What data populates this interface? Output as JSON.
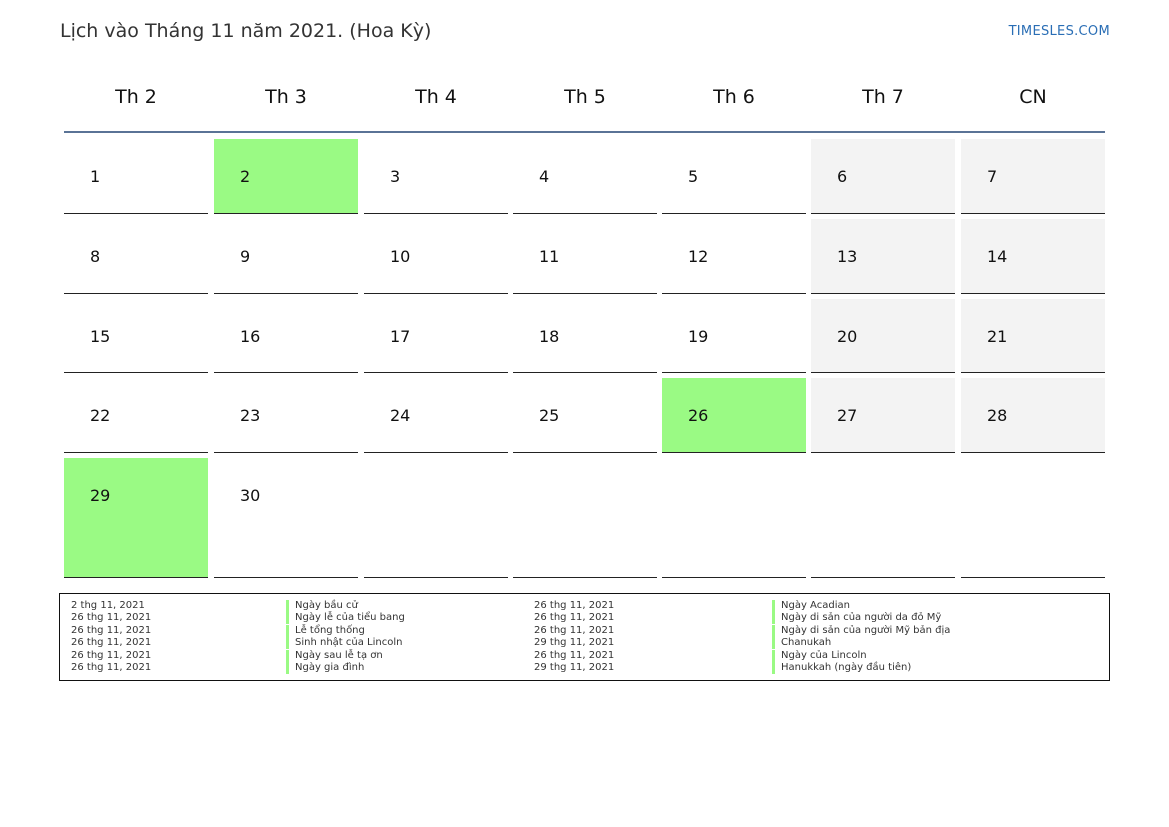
{
  "header": {
    "title": "Lịch vào Tháng 11 năm 2021. (Hoa Kỳ)",
    "brand": "TIMESLES.COM"
  },
  "colors": {
    "holiday": "#9afa84",
    "weekend": "#f3f3f3",
    "header_line": "#5a7396",
    "brand": "#2a6eb5"
  },
  "calendar": {
    "weekdays": [
      "Th 2",
      "Th 3",
      "Th 4",
      "Th 5",
      "Th 6",
      "Th 7",
      "CN"
    ],
    "weeks": [
      [
        {
          "day": "1"
        },
        {
          "day": "2",
          "holiday": true
        },
        {
          "day": "3"
        },
        {
          "day": "4"
        },
        {
          "day": "5"
        },
        {
          "day": "6",
          "weekend": true
        },
        {
          "day": "7",
          "weekend": true
        }
      ],
      [
        {
          "day": "8"
        },
        {
          "day": "9"
        },
        {
          "day": "10"
        },
        {
          "day": "11"
        },
        {
          "day": "12"
        },
        {
          "day": "13",
          "weekend": true
        },
        {
          "day": "14",
          "weekend": true
        }
      ],
      [
        {
          "day": "15"
        },
        {
          "day": "16"
        },
        {
          "day": "17"
        },
        {
          "day": "18"
        },
        {
          "day": "19"
        },
        {
          "day": "20",
          "weekend": true
        },
        {
          "day": "21",
          "weekend": true
        }
      ],
      [
        {
          "day": "22"
        },
        {
          "day": "23"
        },
        {
          "day": "24"
        },
        {
          "day": "25"
        },
        {
          "day": "26",
          "holiday": true
        },
        {
          "day": "27",
          "weekend": true
        },
        {
          "day": "28",
          "weekend": true
        }
      ],
      [
        {
          "day": "29",
          "holiday": true
        },
        {
          "day": "30"
        },
        {
          "day": ""
        },
        {
          "day": ""
        },
        {
          "day": ""
        },
        {
          "day": ""
        },
        {
          "day": ""
        }
      ]
    ]
  },
  "legend": {
    "left": [
      {
        "date": "2 thg 11, 2021",
        "name": "Ngày bầu cử"
      },
      {
        "date": "26 thg 11, 2021",
        "name": "Ngày lễ của tiểu bang"
      },
      {
        "date": "26 thg 11, 2021",
        "name": "Lễ tổng thống"
      },
      {
        "date": "26 thg 11, 2021",
        "name": "Sinh nhật của Lincoln"
      },
      {
        "date": "26 thg 11, 2021",
        "name": "Ngày sau lễ tạ ơn"
      },
      {
        "date": "26 thg 11, 2021",
        "name": "Ngày gia đình"
      }
    ],
    "right": [
      {
        "date": "26 thg 11, 2021",
        "name": "Ngày Acadian"
      },
      {
        "date": "26 thg 11, 2021",
        "name": "Ngày di sản của người da đỏ Mỹ"
      },
      {
        "date": "26 thg 11, 2021",
        "name": "Ngày di sản của người Mỹ bản địa"
      },
      {
        "date": "29 thg 11, 2021",
        "name": "Chanukah"
      },
      {
        "date": "26 thg 11, 2021",
        "name": "Ngày của Lincoln"
      },
      {
        "date": "29 thg 11, 2021",
        "name": "Hanukkah (ngày đầu tiên)"
      }
    ]
  }
}
